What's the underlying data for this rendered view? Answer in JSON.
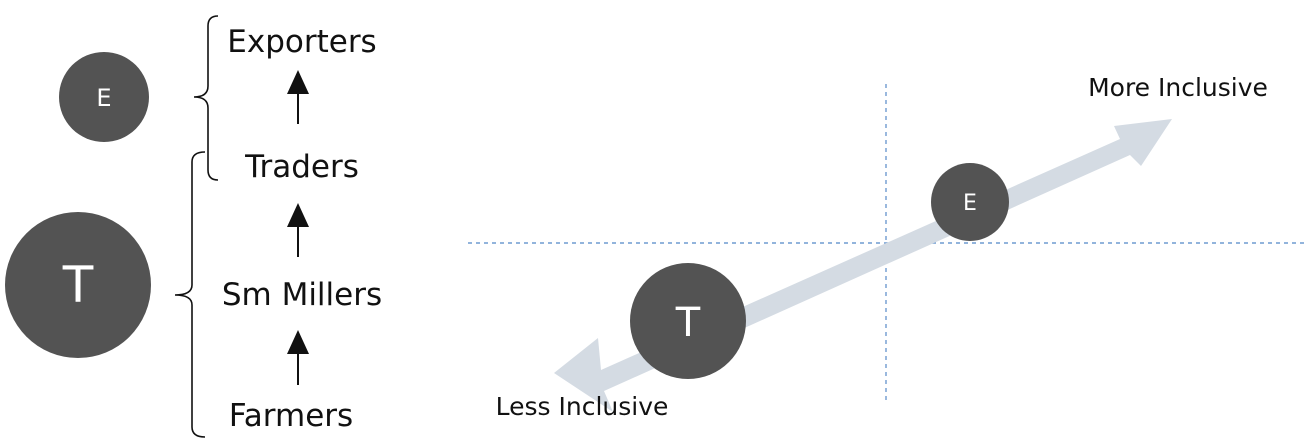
{
  "chain": {
    "stages": [
      {
        "label": "Exporters"
      },
      {
        "label": "Traders"
      },
      {
        "label": "Sm Millers"
      },
      {
        "label": "Farmers"
      }
    ],
    "groups": [
      {
        "letter": "E"
      },
      {
        "letter": "T"
      }
    ]
  },
  "inclusiveness": {
    "more_label": "More Inclusive",
    "less_label": "Less Inclusive",
    "markers": [
      {
        "letter": "E"
      },
      {
        "letter": "T"
      }
    ]
  },
  "colors": {
    "circle_fill": "#535353",
    "circle_text": "#ffffff",
    "arrow_fill": "#d4dbe3",
    "dashed_line": "#6f9bd0",
    "ink": "#111111"
  }
}
